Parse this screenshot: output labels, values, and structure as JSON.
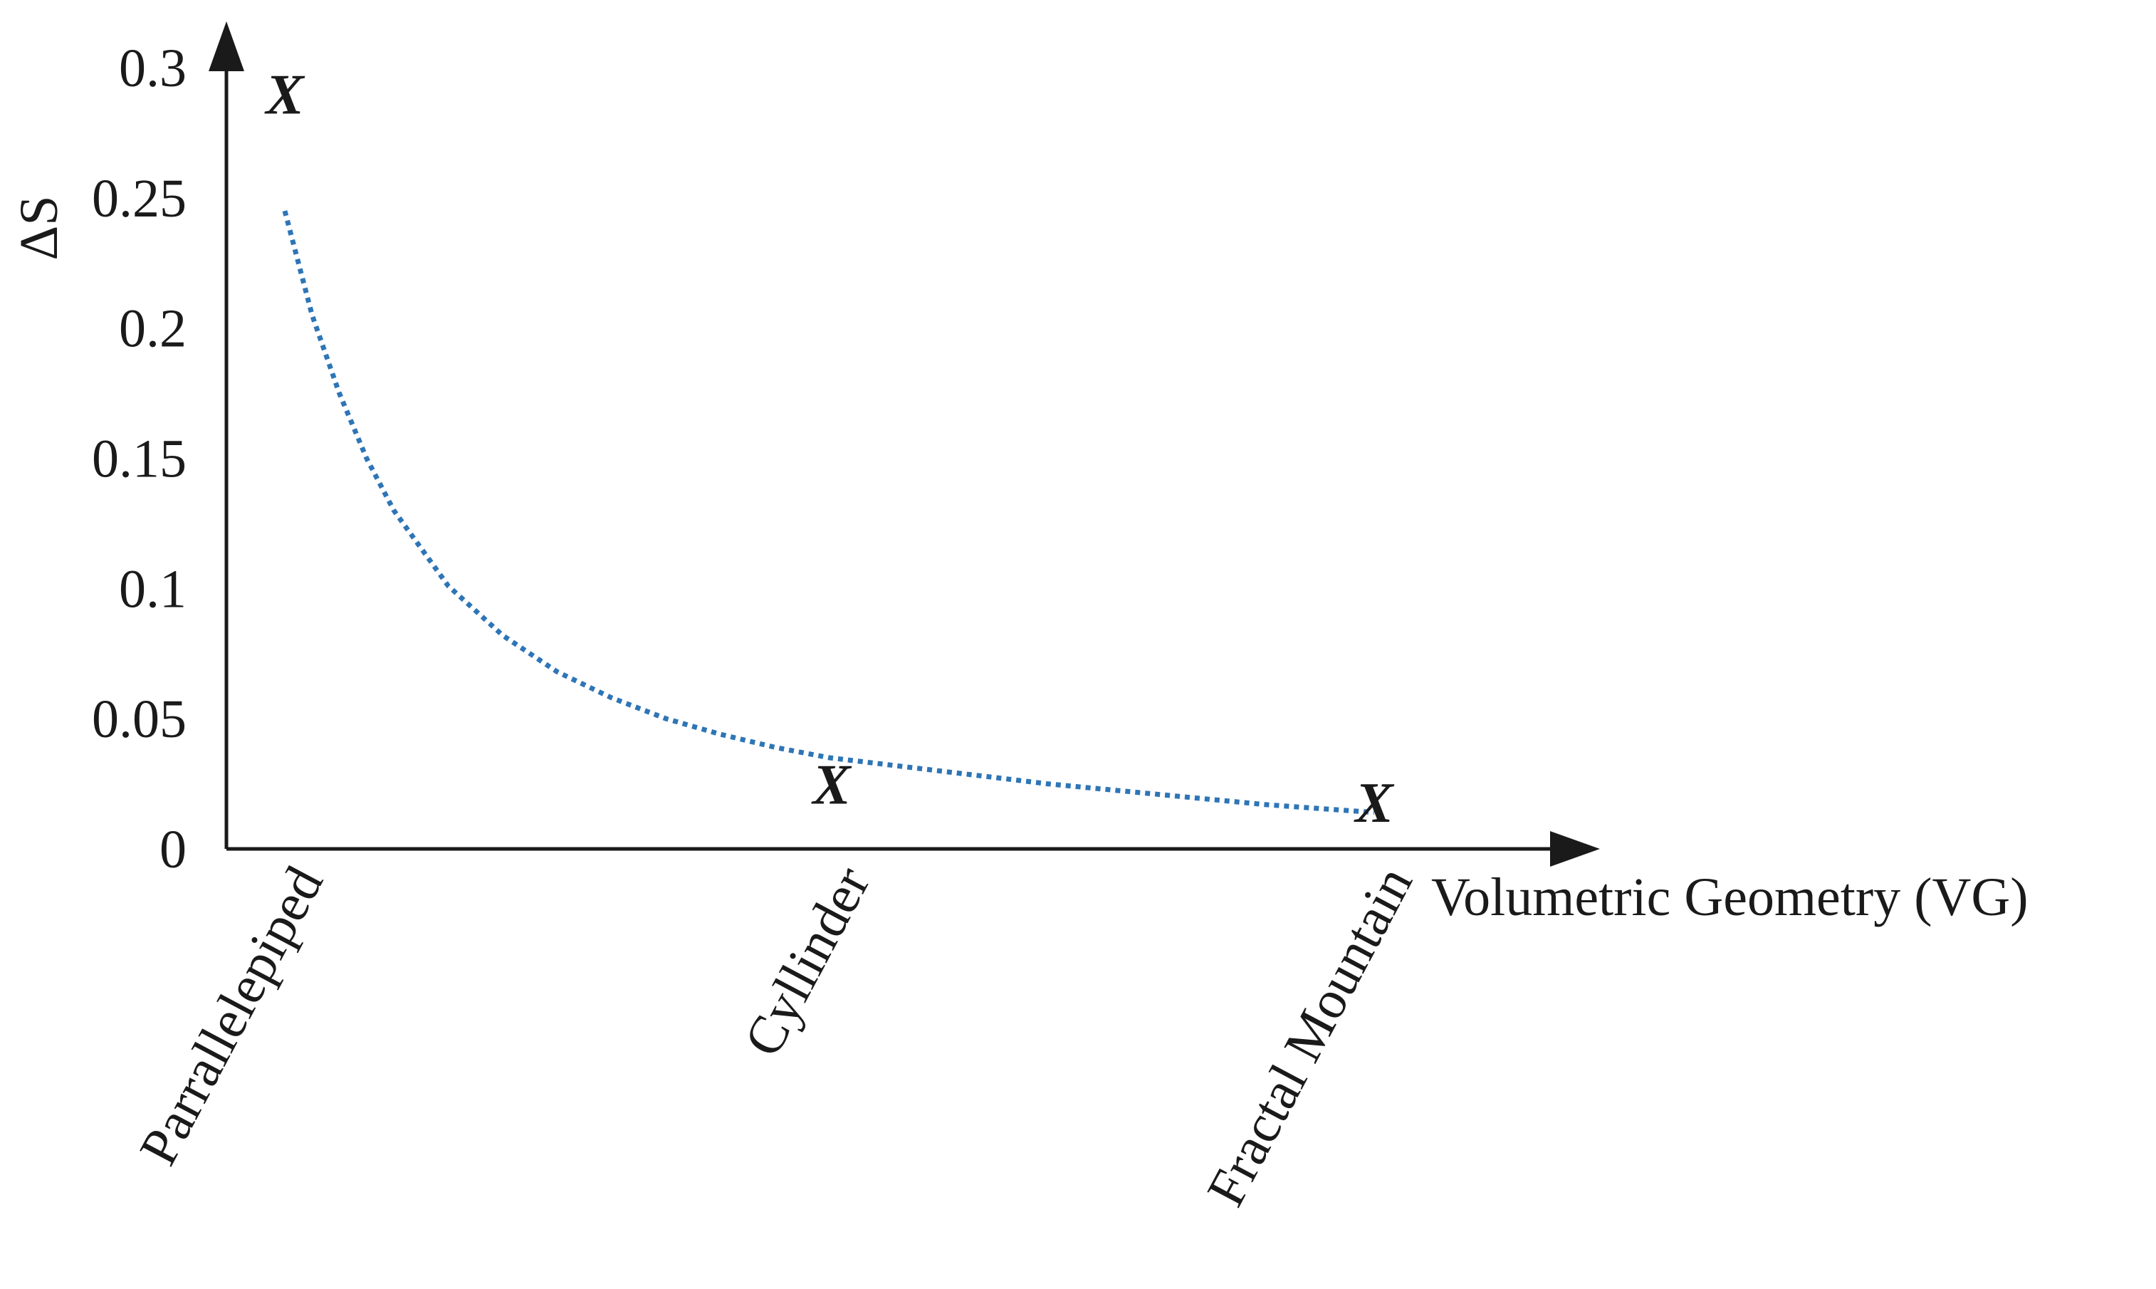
{
  "chart_data": {
    "type": "line",
    "title": "",
    "xlabel": "Volumetric Geometry (VG)",
    "ylabel": "ΔS",
    "ylim": [
      0,
      0.3
    ],
    "yticks": [
      "0",
      "0.05",
      "0.1",
      "0.15",
      "0.2",
      "0.25",
      "0.3"
    ],
    "categories": [
      "Parrallelepiped",
      "Cyllinder",
      "Fractal Mountain"
    ],
    "grid": false,
    "legend": "none",
    "series": [
      {
        "type": "scatter",
        "marker_label": "X",
        "points": [
          {
            "category": "Parrallelepiped",
            "y": 0.29
          },
          {
            "category": "Cyllinder",
            "y": 0.025
          },
          {
            "category": "Fractal Mountain",
            "y": 0.018
          }
        ]
      },
      {
        "type": "line",
        "style": "dotted",
        "color": "#2e75b6",
        "x": [
          0,
          0.05,
          0.1,
          0.15,
          0.2,
          0.3,
          0.4,
          0.5,
          0.6,
          0.7,
          0.8,
          0.9,
          1.0,
          1.2,
          1.4,
          1.6,
          1.8,
          2.0
        ],
        "y": [
          0.245,
          0.205,
          0.175,
          0.15,
          0.13,
          0.101,
          0.082,
          0.068,
          0.058,
          0.05,
          0.044,
          0.039,
          0.035,
          0.03,
          0.025,
          0.021,
          0.017,
          0.014
        ]
      }
    ]
  },
  "colors": {
    "axis": "#1a1a1a",
    "curve": "#2e75b6"
  }
}
